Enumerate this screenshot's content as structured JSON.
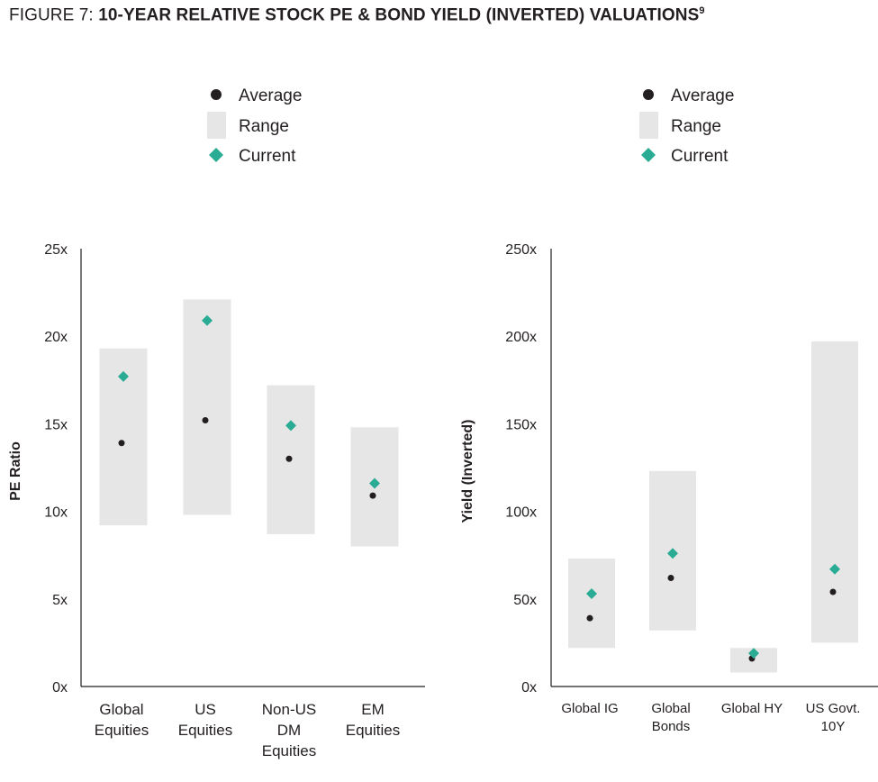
{
  "figure": {
    "prefix": "FIGURE 7: ",
    "title": "10-YEAR RELATIVE STOCK PE & BOND YIELD (INVERTED) VALUATIONS",
    "superscript": "9"
  },
  "colors": {
    "average": "#231f20",
    "range": "#e6e6e6",
    "current": "#2aab94"
  },
  "legend": {
    "average": "Average",
    "range": "Range",
    "current": "Current"
  },
  "chart_data": [
    {
      "type": "range-dot",
      "title": "",
      "xlabel": "",
      "ylabel": "PE Ratio",
      "ylim": [
        0,
        25
      ],
      "yticks": [
        0,
        5,
        10,
        15,
        20,
        25
      ],
      "ytick_labels": [
        "0x",
        "5x",
        "10x",
        "15x",
        "20x",
        "25x"
      ],
      "categories": [
        "Global Equities",
        "US Equities",
        "Non-US DM Equities",
        "EM Equities"
      ],
      "category_lines": [
        [
          "Global",
          "Equities"
        ],
        [
          "US",
          "Equities"
        ],
        [
          "Non-US",
          "DM",
          "Equities"
        ],
        [
          "EM",
          "Equities"
        ]
      ],
      "series": [
        {
          "name": "Range",
          "values": [
            [
              9.2,
              19.3
            ],
            [
              9.8,
              22.1
            ],
            [
              8.7,
              17.2
            ],
            [
              8.0,
              14.8
            ]
          ]
        },
        {
          "name": "Average",
          "values": [
            13.9,
            15.2,
            13.0,
            10.9
          ]
        },
        {
          "name": "Current",
          "values": [
            17.7,
            20.9,
            14.9,
            11.6
          ]
        }
      ]
    },
    {
      "type": "range-dot",
      "title": "",
      "xlabel": "",
      "ylabel": "Yield (Inverted)",
      "ylim": [
        0,
        250
      ],
      "yticks": [
        0,
        50,
        100,
        150,
        200,
        250
      ],
      "ytick_labels": [
        "0x",
        "50x",
        "100x",
        "150x",
        "200x",
        "250x"
      ],
      "categories": [
        "Global IG",
        "Global Bonds",
        "Global HY",
        "US Govt. 10Y"
      ],
      "category_lines": [
        [
          "Global IG"
        ],
        [
          "Global",
          "Bonds"
        ],
        [
          "Global HY"
        ],
        [
          "US Govt.",
          "10Y"
        ]
      ],
      "series": [
        {
          "name": "Range",
          "values": [
            [
              22,
              73
            ],
            [
              32,
              123
            ],
            [
              8,
              22
            ],
            [
              25,
              197
            ]
          ]
        },
        {
          "name": "Average",
          "values": [
            39,
            62,
            16,
            54
          ]
        },
        {
          "name": "Current",
          "values": [
            53,
            76,
            19,
            67
          ]
        }
      ]
    }
  ]
}
